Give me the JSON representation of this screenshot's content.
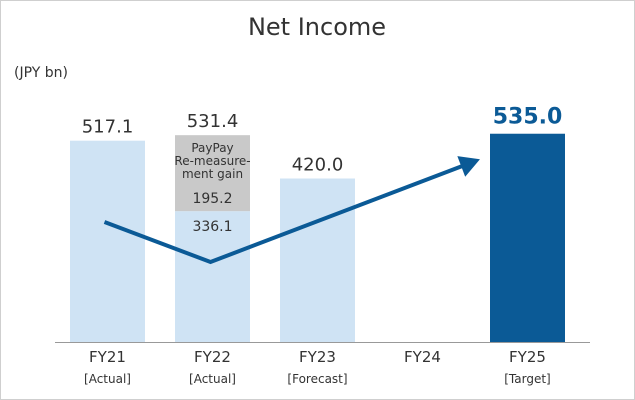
{
  "chart_data": {
    "type": "bar",
    "title": "Net Income",
    "unit_label": "(JPY bn)",
    "categories": [
      "FY21",
      "FY22",
      "FY23",
      "FY24",
      "FY25"
    ],
    "category_notes": [
      "[Actual]",
      "[Actual]",
      "[Forecast]",
      "",
      "[Target]"
    ],
    "totals": [
      517.1,
      531.4,
      420.0,
      null,
      535.0
    ],
    "total_labels": [
      "517.1",
      "531.4",
      "420.0",
      "",
      "535.0"
    ],
    "series": [
      {
        "values": [
          517.1,
          336.1,
          420.0,
          null,
          535.0
        ],
        "labels": [
          "",
          "336.1",
          "",
          "",
          ""
        ]
      },
      {
        "values": [
          null,
          195.2,
          null,
          null,
          null
        ],
        "labels": [
          "",
          "195.2",
          "",
          "",
          ""
        ]
      }
    ],
    "segment_annotation": {
      "category": "FY22",
      "lines": [
        "PayPay",
        "Re-measure-",
        "ment gain"
      ]
    },
    "ylim": [
      0,
      560
    ],
    "highlight_category": "FY25",
    "colors": {
      "bar": "#cfe3f4",
      "segment": "#c9c9c9",
      "highlight_bar": "#0b5a96",
      "arrow": "#0b5a96",
      "axis": "#999999"
    }
  }
}
